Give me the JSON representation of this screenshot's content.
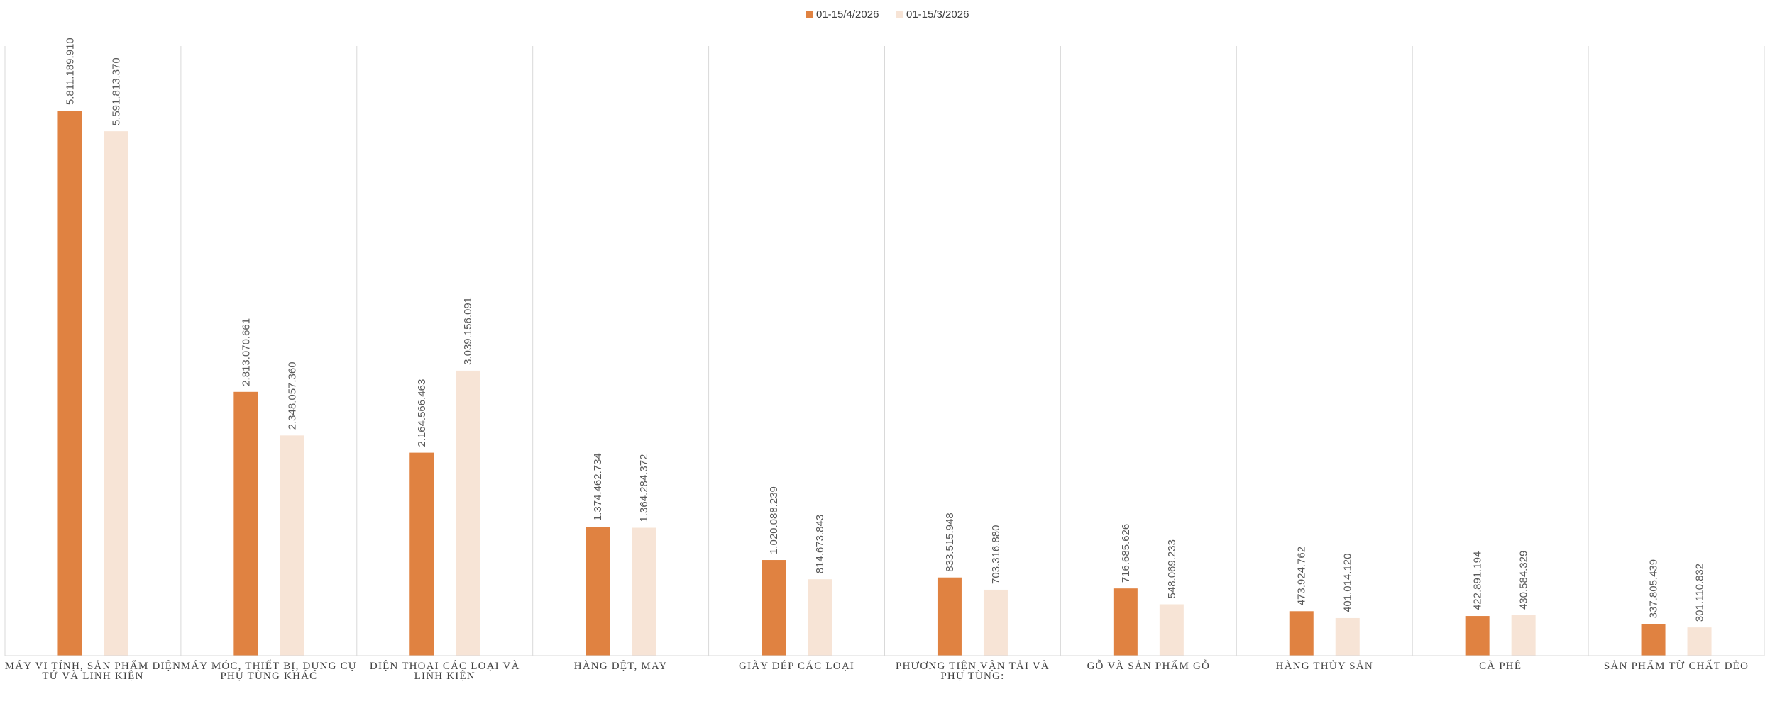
{
  "chart_data": {
    "type": "bar",
    "title": "",
    "xlabel": "",
    "ylabel": "",
    "ylim": [
      0,
      6500000000
    ],
    "grid": false,
    "legend_position": "top-center",
    "categories": [
      [
        "MÁY VI TÍNH, SẢN PHẨM ĐIỆN",
        "TỬ VÀ LINH KIỆN"
      ],
      [
        "MÁY MÓC, THIẾT BỊ, DỤNG CỤ",
        "PHỤ TÙNG KHÁC"
      ],
      [
        "ĐIỆN THOẠI CÁC LOẠI VÀ",
        "LINH KIỆN"
      ],
      [
        "HÀNG DỆT, MAY"
      ],
      [
        "GIÀY DÉP CÁC LOẠI"
      ],
      [
        "PHƯƠNG TIỆN VẬN TẢI VÀ",
        "PHỤ TÙNG:"
      ],
      [
        "GỖ VÀ SẢN PHẨM GỖ"
      ],
      [
        "HÀNG THỦY SẢN"
      ],
      [
        "CÀ PHÊ"
      ],
      [
        "SẢN PHẨM TỪ CHẤT DẺO"
      ]
    ],
    "series": [
      {
        "name": "01-15/4/2026",
        "color": "#E08241",
        "values": [
          5811189910,
          2813070661,
          2164566463,
          1374462734,
          1020088239,
          833515948,
          716685626,
          473924762,
          422891194,
          337805439
        ],
        "labels": [
          "5.811.189.910",
          "2.813.070.661",
          "2.164.566.463",
          "1.374.462.734",
          "1.020.088.239",
          "833.515.948",
          "716.685.626",
          "473.924.762",
          "422.891.194",
          "337.805.439"
        ]
      },
      {
        "name": "01-15/3/2026",
        "color": "#F7E4D6",
        "values": [
          5591813370,
          2348057360,
          3039156091,
          1364284372,
          814673843,
          703316880,
          548069233,
          401014120,
          430584329,
          301110832
        ],
        "labels": [
          "5.591.813.370",
          "2.348.057.360",
          "3.039.156.091",
          "1.364.284.372",
          "814.673.843",
          "703.316.880",
          "548.069.233",
          "401.014.120",
          "430.584.329",
          "301.110.832"
        ]
      }
    ],
    "separator_color": "#D9D9D9",
    "axis_color": "#D9D9D9"
  }
}
